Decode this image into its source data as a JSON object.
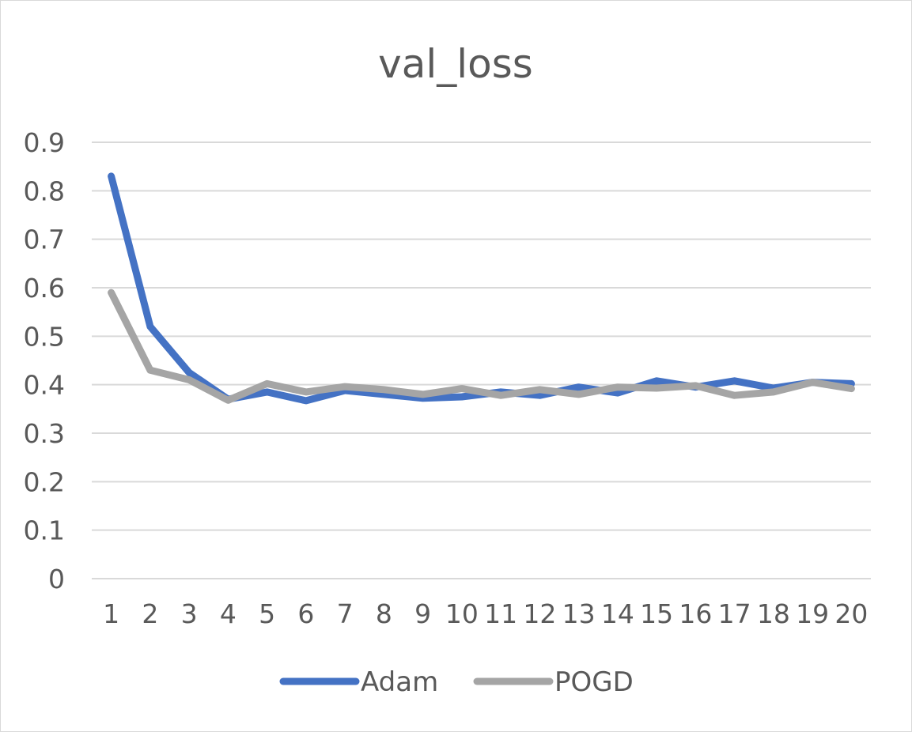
{
  "chart_data": {
    "type": "line",
    "title": "val_loss",
    "xlabel": "",
    "ylabel": "",
    "categories": [
      "1",
      "2",
      "3",
      "4",
      "5",
      "6",
      "7",
      "8",
      "9",
      "10",
      "11",
      "12",
      "13",
      "14",
      "15",
      "16",
      "17",
      "18",
      "19",
      "20"
    ],
    "ylim": [
      0,
      0.9
    ],
    "yticks": [
      "0",
      "0.1",
      "0.2",
      "0.3",
      "0.4",
      "0.5",
      "0.6",
      "0.7",
      "0.8",
      "0.9"
    ],
    "grid": true,
    "legend_position": "bottom",
    "series": [
      {
        "name": "Adam",
        "color": "#4472c4",
        "values": [
          0.83,
          0.52,
          0.425,
          0.37,
          0.385,
          0.367,
          0.388,
          0.38,
          0.372,
          0.375,
          0.385,
          0.378,
          0.395,
          0.383,
          0.408,
          0.395,
          0.408,
          0.393,
          0.405,
          0.402
        ]
      },
      {
        "name": "POGD",
        "color": "#a5a5a5",
        "values": [
          0.59,
          0.43,
          0.41,
          0.368,
          0.402,
          0.385,
          0.396,
          0.39,
          0.38,
          0.392,
          0.378,
          0.39,
          0.38,
          0.395,
          0.393,
          0.398,
          0.378,
          0.385,
          0.405,
          0.392
        ]
      }
    ]
  }
}
